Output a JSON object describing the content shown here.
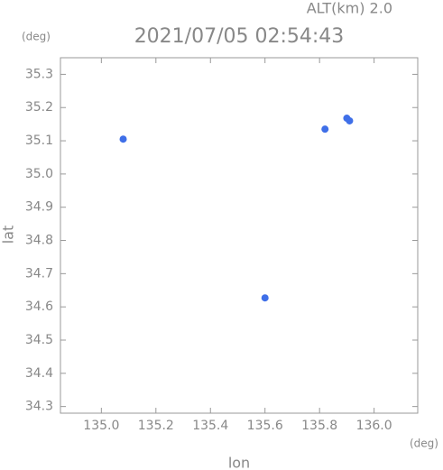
{
  "chart_data": {
    "type": "scatter",
    "title": "2021/07/05 02:54:43",
    "subtitle": "ALT(km) 2.0",
    "x_label": "lon",
    "y_label": "lat",
    "x_unit": "(deg)",
    "y_unit": "(deg)",
    "series": [
      {
        "color": "#3f6fe8",
        "x": [
          135.08,
          135.82,
          135.9,
          135.91,
          135.6
        ],
        "values": [
          35.105,
          35.135,
          35.168,
          35.16,
          34.627
        ]
      }
    ],
    "xlim": [
      134.85,
      136.16
    ],
    "ylim": [
      34.28,
      35.35
    ],
    "xticks": [
      {
        "value": 135.0,
        "label": "135.0"
      },
      {
        "value": 135.2,
        "label": "135.2"
      },
      {
        "value": 135.4,
        "label": "135.4"
      },
      {
        "value": 135.6,
        "label": "135.6"
      },
      {
        "value": 135.8,
        "label": "135.8"
      },
      {
        "value": 136.0,
        "label": "136.0"
      }
    ],
    "yticks": [
      {
        "value": 34.3,
        "label": "34.3"
      },
      {
        "value": 34.4,
        "label": "34.4"
      },
      {
        "value": 34.5,
        "label": "34.5"
      },
      {
        "value": 34.6,
        "label": "34.6"
      },
      {
        "value": 34.7,
        "label": "34.7"
      },
      {
        "value": 34.8,
        "label": "34.8"
      },
      {
        "value": 34.9,
        "label": "34.9"
      },
      {
        "value": 35.0,
        "label": "35.0"
      },
      {
        "value": 35.1,
        "label": "35.1"
      },
      {
        "value": 35.2,
        "label": "35.2"
      },
      {
        "value": 35.3,
        "label": "35.3"
      }
    ]
  }
}
